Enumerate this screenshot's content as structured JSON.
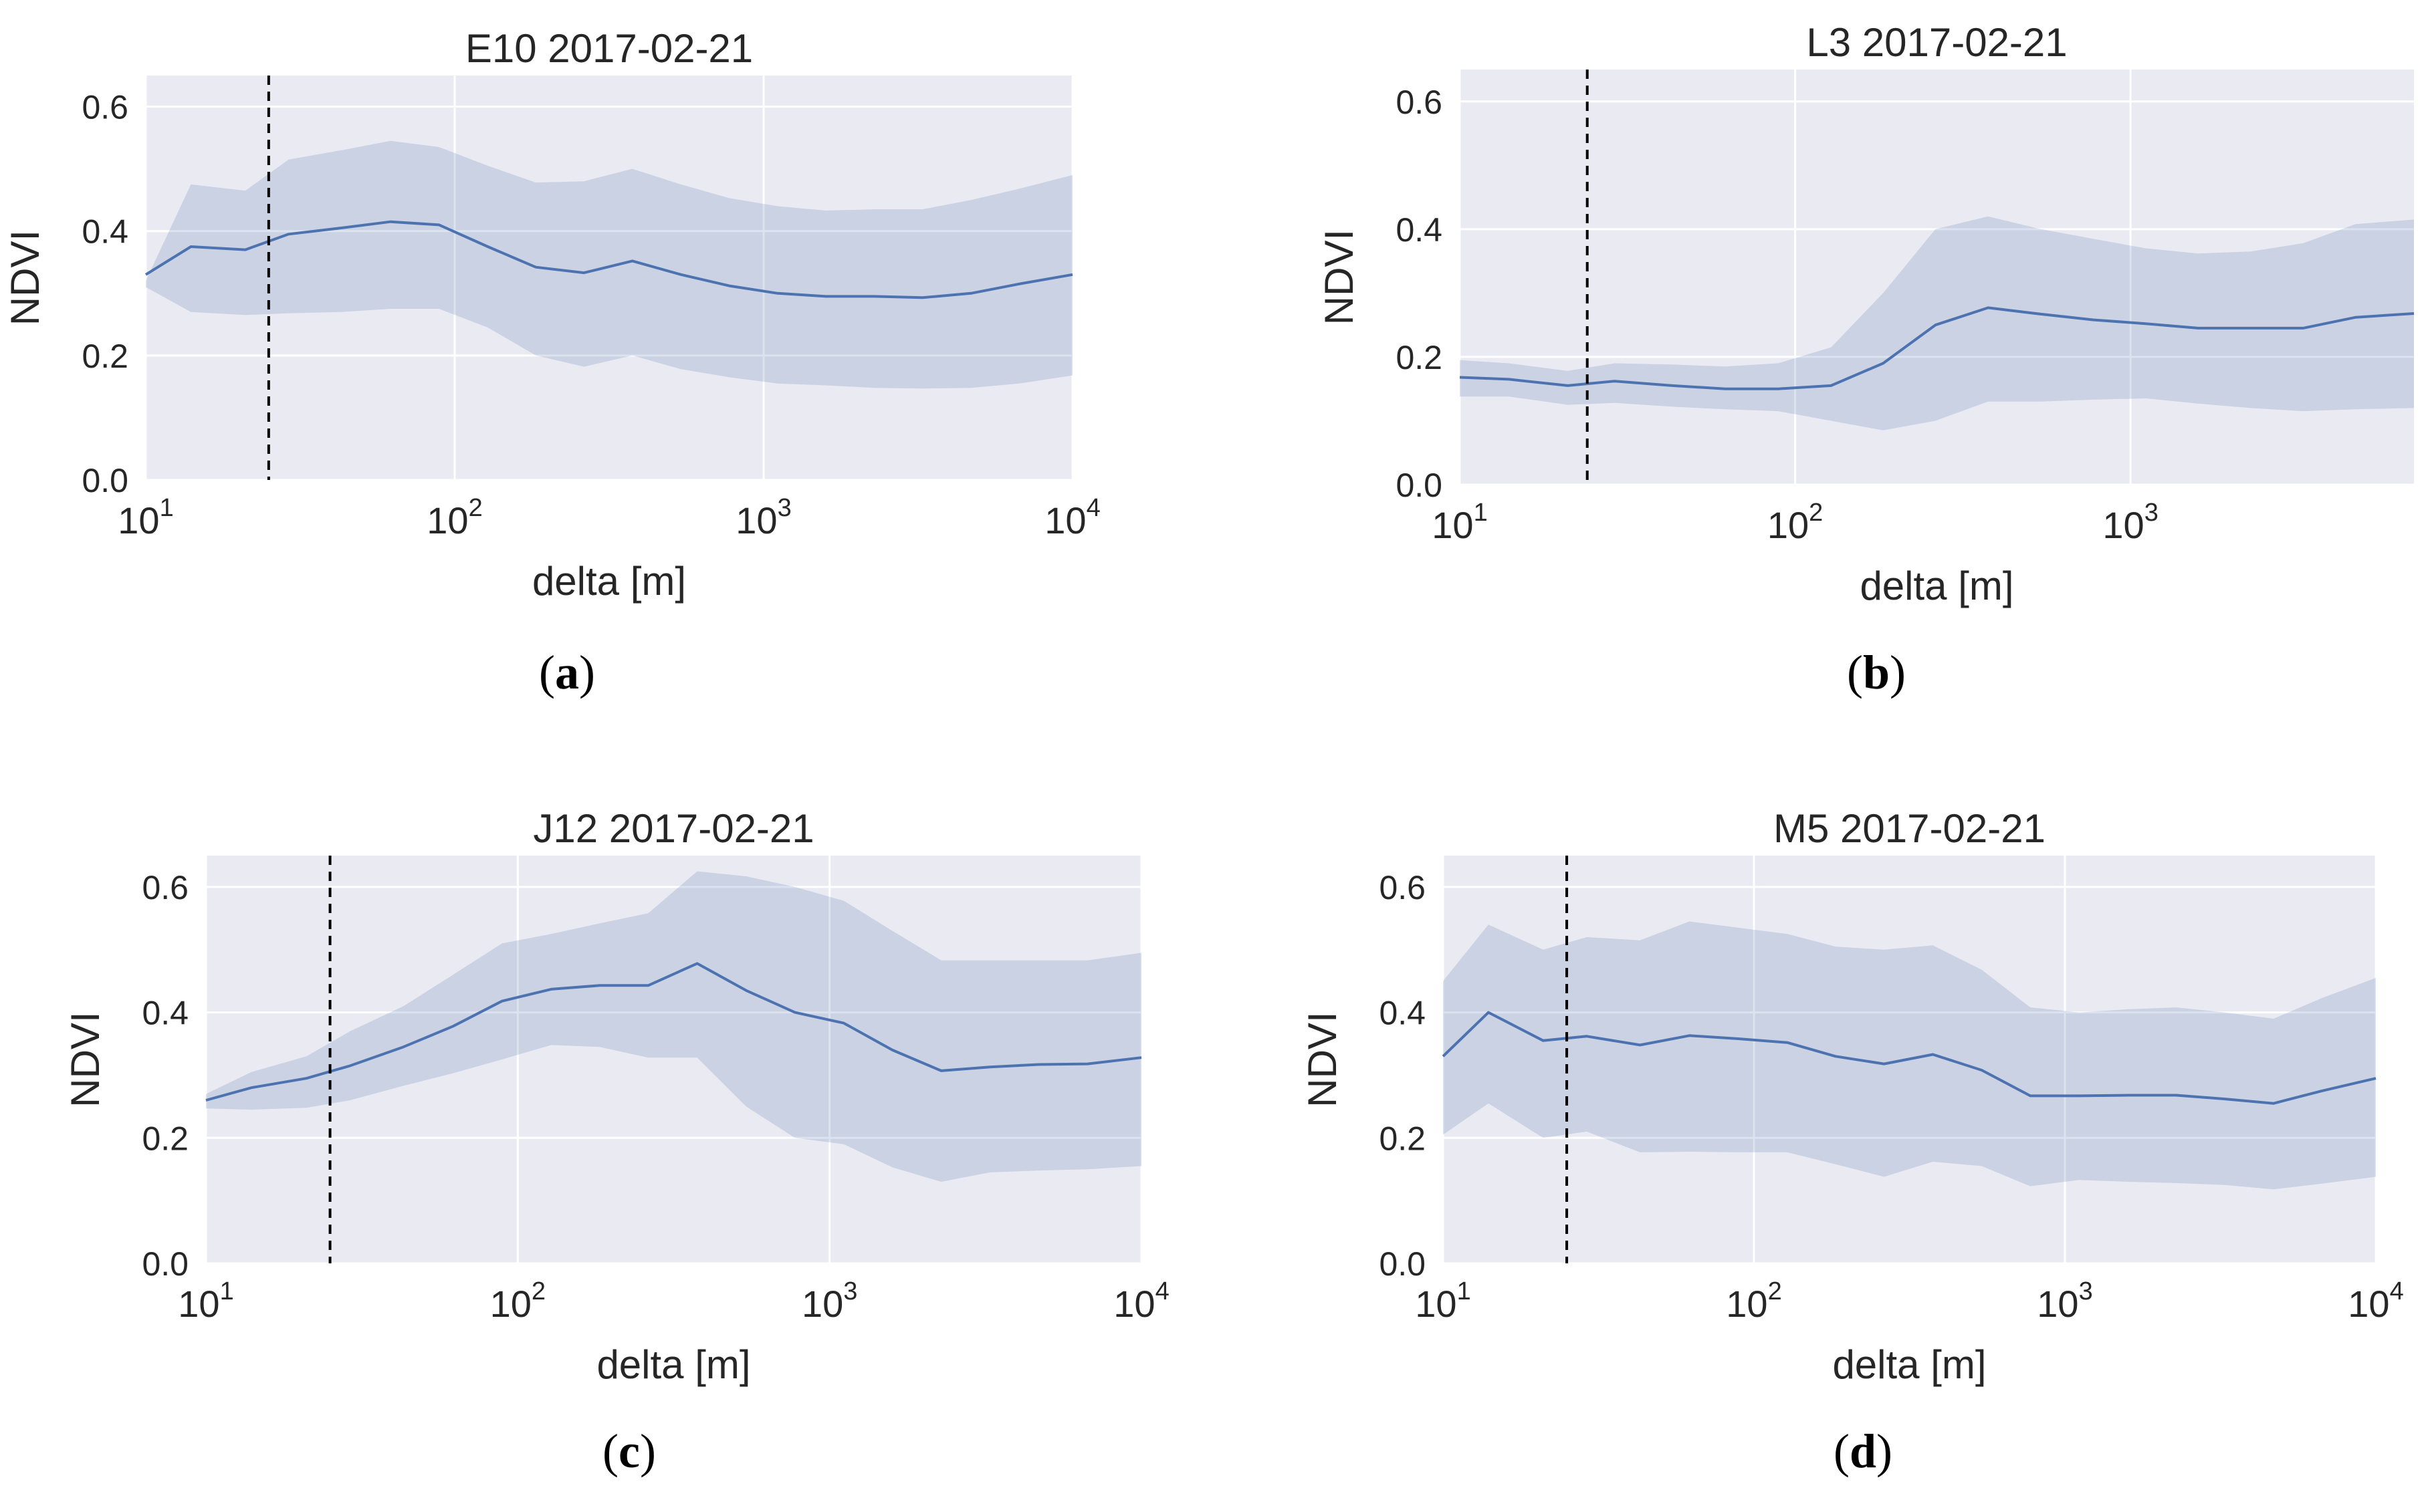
{
  "chart_data": [
    {
      "type": "line",
      "panel_label": "a",
      "title": "E10 2017-02-21",
      "xlabel": "delta [m]",
      "ylabel": "NDVI",
      "xscale": "log",
      "xlim": [
        10,
        10000
      ],
      "ylim": [
        0.0,
        0.65
      ],
      "xticks": [
        {
          "value": 10,
          "base": "10",
          "exp": "1"
        },
        {
          "value": 100,
          "base": "10",
          "exp": "2"
        },
        {
          "value": 1000,
          "base": "10",
          "exp": "3"
        },
        {
          "value": 10000,
          "base": "10",
          "exp": "4"
        }
      ],
      "yticks": [
        "0.0",
        "0.2",
        "0.4",
        "0.6"
      ],
      "grid": true,
      "vline": 25,
      "series": [
        {
          "x": [
            10,
            14,
            21,
            29,
            43,
            62,
            89,
            128,
            183,
            262,
            376,
            540,
            774,
            1110,
            1590,
            2280,
            3270,
            4690,
            6720,
            10000
          ],
          "y": [
            0.33,
            0.375,
            0.37,
            0.395,
            0.405,
            0.415,
            0.41,
            0.375,
            0.342,
            0.333,
            0.352,
            0.33,
            0.312,
            0.3,
            0.295,
            0.295,
            0.293,
            0.3,
            0.315,
            0.33
          ],
          "upper": [
            0.32,
            0.475,
            0.465,
            0.515,
            0.53,
            0.545,
            0.535,
            0.505,
            0.478,
            0.48,
            0.5,
            0.475,
            0.453,
            0.44,
            0.433,
            0.435,
            0.435,
            0.45,
            0.468,
            0.49
          ],
          "lower": [
            0.31,
            0.27,
            0.265,
            0.268,
            0.27,
            0.275,
            0.275,
            0.245,
            0.2,
            0.182,
            0.2,
            0.178,
            0.165,
            0.155,
            0.152,
            0.148,
            0.147,
            0.148,
            0.155,
            0.168
          ]
        }
      ]
    },
    {
      "type": "line",
      "panel_label": "b",
      "title": "L3 2017-02-21",
      "xlabel": "delta [m]",
      "ylabel": "NDVI",
      "xscale": "log",
      "xlim": [
        10,
        7000
      ],
      "ylim": [
        0.0,
        0.65
      ],
      "xticks": [
        {
          "value": 10,
          "base": "10",
          "exp": "1"
        },
        {
          "value": 100,
          "base": "10",
          "exp": "2"
        },
        {
          "value": 1000,
          "base": "10",
          "exp": "3"
        }
      ],
      "yticks": [
        "0.0",
        "0.2",
        "0.4",
        "0.6"
      ],
      "grid": true,
      "vline": 24,
      "series": [
        {
          "x": [
            10,
            14,
            21,
            29,
            43,
            62,
            89,
            128,
            183,
            262,
            376,
            540,
            774,
            1110,
            1590,
            2280,
            3270,
            4690,
            7000
          ],
          "y": [
            0.168,
            0.165,
            0.155,
            0.162,
            0.155,
            0.15,
            0.15,
            0.155,
            0.19,
            0.25,
            0.277,
            0.267,
            0.258,
            0.252,
            0.245,
            0.245,
            0.245,
            0.262,
            0.268
          ],
          "upper": [
            0.195,
            0.19,
            0.178,
            0.19,
            0.188,
            0.185,
            0.19,
            0.215,
            0.3,
            0.4,
            0.42,
            0.4,
            0.385,
            0.37,
            0.362,
            0.365,
            0.378,
            0.408,
            0.415
          ],
          "lower": [
            0.138,
            0.138,
            0.125,
            0.128,
            0.122,
            0.118,
            0.115,
            0.1,
            0.085,
            0.1,
            0.13,
            0.13,
            0.133,
            0.135,
            0.127,
            0.12,
            0.115,
            0.118,
            0.12
          ]
        }
      ]
    },
    {
      "type": "line",
      "panel_label": "c",
      "title": "J12 2017-02-21",
      "xlabel": "delta [m]",
      "ylabel": "NDVI",
      "xscale": "log",
      "xlim": [
        10,
        10000
      ],
      "ylim": [
        0.0,
        0.65
      ],
      "xticks": [
        {
          "value": 10,
          "base": "10",
          "exp": "1"
        },
        {
          "value": 100,
          "base": "10",
          "exp": "2"
        },
        {
          "value": 1000,
          "base": "10",
          "exp": "3"
        },
        {
          "value": 10000,
          "base": "10",
          "exp": "4"
        }
      ],
      "yticks": [
        "0.0",
        "0.2",
        "0.4",
        "0.6"
      ],
      "grid": true,
      "vline": 25,
      "series": [
        {
          "x": [
            10,
            14,
            21,
            29,
            43,
            62,
            89,
            128,
            183,
            262,
            376,
            540,
            774,
            1110,
            1590,
            2280,
            3270,
            4690,
            6720,
            10000
          ],
          "y": [
            0.26,
            0.28,
            0.295,
            0.315,
            0.345,
            0.378,
            0.418,
            0.437,
            0.443,
            0.443,
            0.478,
            0.435,
            0.4,
            0.383,
            0.34,
            0.307,
            0.313,
            0.317,
            0.318,
            0.328
          ],
          "upper": [
            0.27,
            0.305,
            0.33,
            0.37,
            0.41,
            0.46,
            0.51,
            0.525,
            0.542,
            0.558,
            0.625,
            0.617,
            0.6,
            0.578,
            0.53,
            0.483,
            0.483,
            0.483,
            0.483,
            0.495
          ],
          "lower": [
            0.247,
            0.245,
            0.248,
            0.26,
            0.283,
            0.303,
            0.325,
            0.348,
            0.345,
            0.328,
            0.328,
            0.25,
            0.2,
            0.19,
            0.153,
            0.13,
            0.145,
            0.148,
            0.15,
            0.155
          ]
        }
      ]
    },
    {
      "type": "line",
      "panel_label": "d",
      "title": "M5 2017-02-21",
      "xlabel": "delta [m]",
      "ylabel": "NDVI",
      "xscale": "log",
      "xlim": [
        10,
        10000
      ],
      "ylim": [
        0.0,
        0.65
      ],
      "xticks": [
        {
          "value": 10,
          "base": "10",
          "exp": "1"
        },
        {
          "value": 100,
          "base": "10",
          "exp": "2"
        },
        {
          "value": 1000,
          "base": "10",
          "exp": "3"
        },
        {
          "value": 10000,
          "base": "10",
          "exp": "4"
        }
      ],
      "yticks": [
        "0.0",
        "0.2",
        "0.4",
        "0.6"
      ],
      "grid": true,
      "vline": 25,
      "series": [
        {
          "x": [
            10,
            14,
            21,
            29,
            43,
            62,
            89,
            128,
            183,
            262,
            376,
            540,
            774,
            1110,
            1590,
            2280,
            3270,
            4690,
            6720,
            10000
          ],
          "y": [
            0.33,
            0.4,
            0.355,
            0.362,
            0.348,
            0.363,
            0.358,
            0.352,
            0.33,
            0.318,
            0.333,
            0.308,
            0.267,
            0.267,
            0.268,
            0.268,
            0.262,
            0.255,
            0.275,
            0.295
          ],
          "upper": [
            0.45,
            0.54,
            0.5,
            0.52,
            0.515,
            0.545,
            0.535,
            0.525,
            0.505,
            0.5,
            0.507,
            0.468,
            0.408,
            0.4,
            0.405,
            0.408,
            0.4,
            0.39,
            0.423,
            0.455
          ],
          "lower": [
            0.205,
            0.255,
            0.2,
            0.21,
            0.177,
            0.178,
            0.177,
            0.177,
            0.158,
            0.138,
            0.162,
            0.155,
            0.123,
            0.133,
            0.13,
            0.128,
            0.125,
            0.118,
            0.127,
            0.138
          ]
        }
      ]
    }
  ],
  "colors": {
    "plot_background": "#eaeaf2",
    "grid": "#ffffff",
    "line": "#4c72b0",
    "band": "#4c72b0",
    "vline": "#000000",
    "text": "#262626"
  }
}
